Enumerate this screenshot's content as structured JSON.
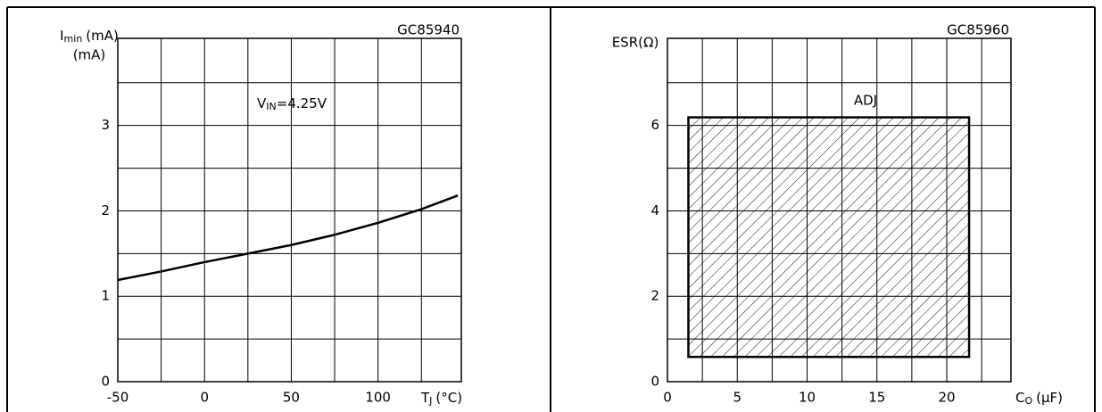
{
  "chart_data": [
    {
      "type": "line",
      "code": "GC85940",
      "ylabel": {
        "main": "I",
        "sub": "min",
        "unit": "(mA)"
      },
      "xlabel": {
        "main": "T",
        "sub": "J",
        "unit": "(°C)"
      },
      "annotation": {
        "main": "V",
        "sub": "IN",
        "rest": "=4.25V"
      },
      "x": [
        -50,
        -25,
        0,
        25,
        50,
        75,
        100,
        125,
        146
      ],
      "values": [
        1.19,
        1.29,
        1.4,
        1.5,
        1.6,
        1.72,
        1.86,
        2.02,
        2.18
      ],
      "color": "#000000",
      "xlim": [
        -50,
        148
      ],
      "ylim": [
        0,
        4.02
      ],
      "xticks": [
        -50,
        0,
        50,
        100
      ],
      "yticks": [
        0,
        1,
        2,
        3
      ],
      "grid": true,
      "xgrid": [
        -50,
        -25,
        0,
        25,
        50,
        75,
        100,
        125
      ],
      "ygrid": [
        0.5,
        1,
        1.5,
        2,
        2.5,
        3,
        3.5
      ]
    },
    {
      "type": "region",
      "code": "GC85960",
      "ylabel": {
        "main": "ESR(Ω)"
      },
      "xlabel": {
        "main": "C",
        "sub": "O",
        "unit": "(μF)"
      },
      "annotation": {
        "main": "ADJ"
      },
      "x_range": [
        1.5,
        21.6
      ],
      "y_range": [
        0.58,
        6.19
      ],
      "color": "#000000",
      "xlim": [
        0,
        24.6
      ],
      "ylim": [
        0,
        8.04
      ],
      "xticks": [
        0,
        5,
        10,
        15,
        20
      ],
      "yticks": [
        0,
        2,
        4,
        6
      ],
      "grid": true,
      "xgrid": [
        2.5,
        5,
        7.5,
        10,
        12.5,
        15,
        17.5,
        20,
        22.5
      ],
      "ygrid": [
        1,
        2,
        3,
        4,
        5,
        6,
        7
      ]
    }
  ]
}
